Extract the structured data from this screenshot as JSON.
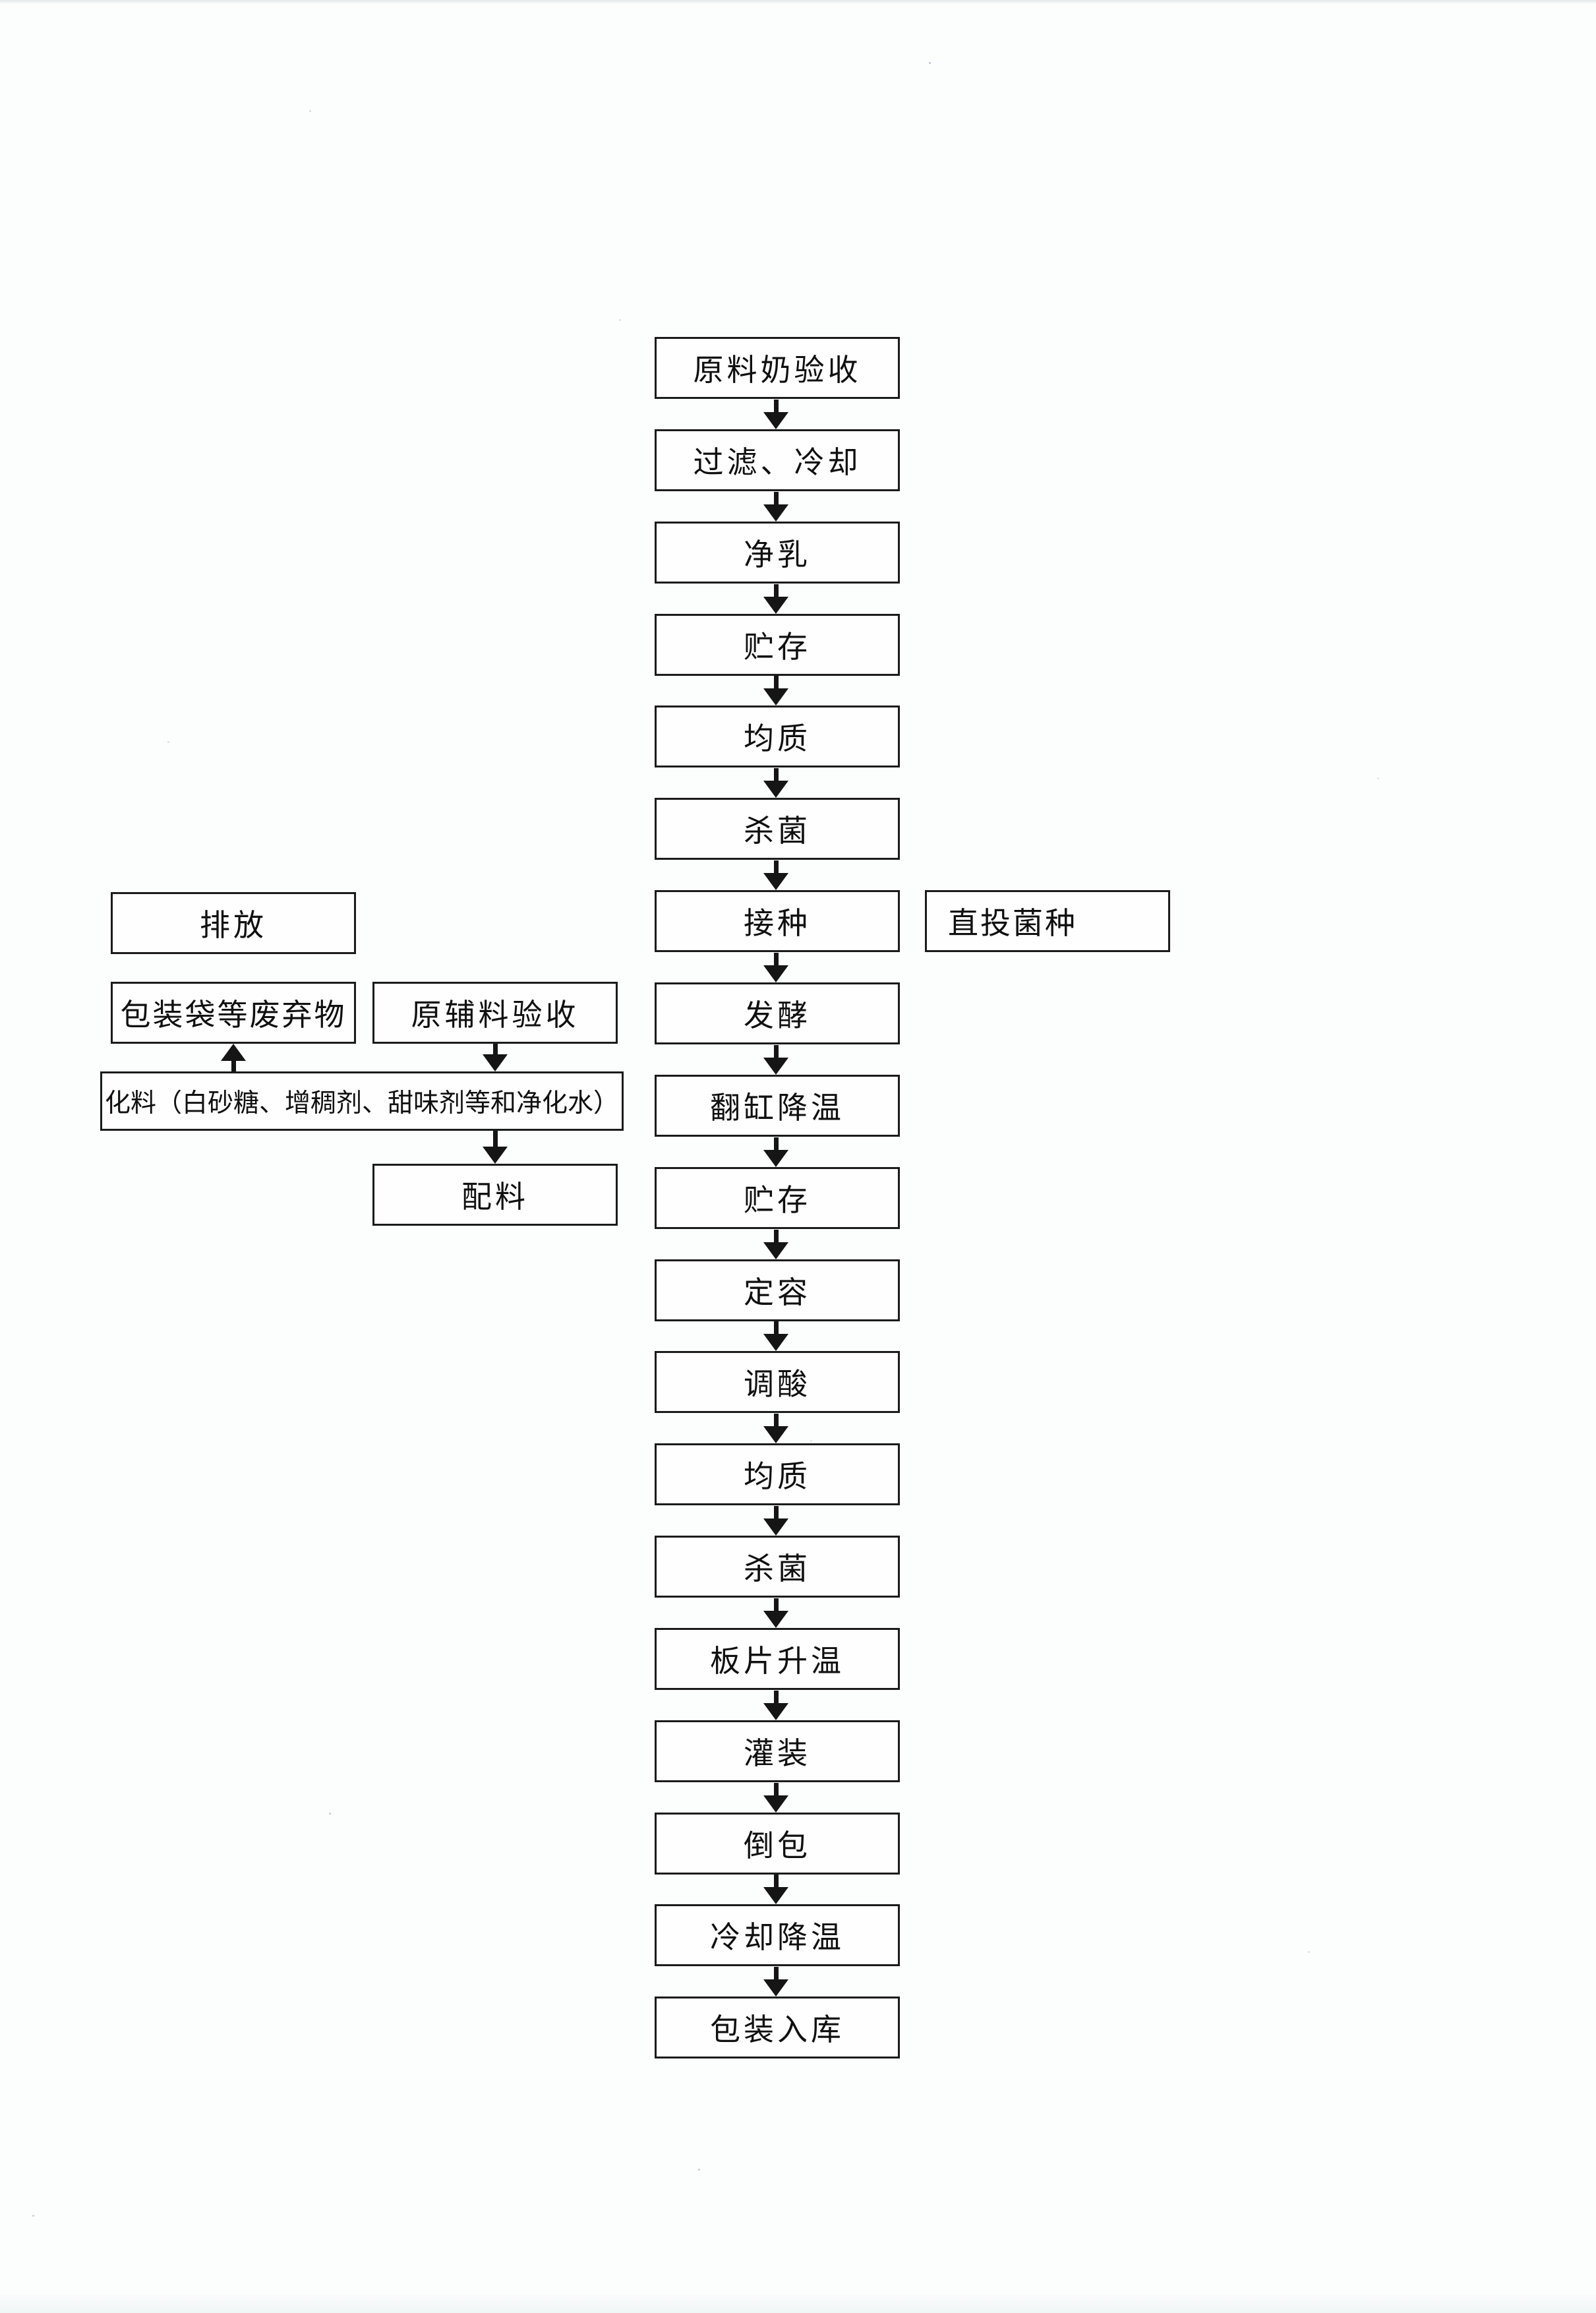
{
  "flowchart": {
    "main_chain": [
      "原料奶验收",
      "过滤、冷却",
      "净乳",
      "贮存",
      "均质",
      "杀菌",
      "接种",
      "发酵",
      "翻缸降温",
      "贮存",
      "定容",
      "调酸",
      "均质",
      "杀菌",
      "板片升温",
      "灌装",
      "倒包",
      "冷却降温",
      "包装入库"
    ],
    "culture_box": {
      "label": "直投菌种",
      "beside_step": "接种"
    },
    "left_branch": {
      "discharge": "排放",
      "waste": "包装袋等废弃物",
      "aux_material_acceptance": "原辅料验收",
      "dissolving": "化料（白砂糖、增稠剂、甜味剂等和净化水）",
      "batching": "配料"
    },
    "connections": {
      "main": "sequential-down-arrows",
      "left": [
        {
          "from": "化料（白砂糖、增稠剂、甜味剂等和净化水）",
          "to": "包装袋等废弃物",
          "direction": "up"
        },
        {
          "from": "原辅料验收",
          "to": "化料（白砂糖、增稠剂、甜味剂等和净化水）",
          "direction": "down"
        },
        {
          "from": "化料（白砂糖、增稠剂、甜味剂等和净化水）",
          "to": "配料",
          "direction": "down"
        }
      ]
    },
    "colors": {
      "line": "#1b1b1b",
      "text": "#101010",
      "page_background": "#fcfdfd"
    }
  }
}
